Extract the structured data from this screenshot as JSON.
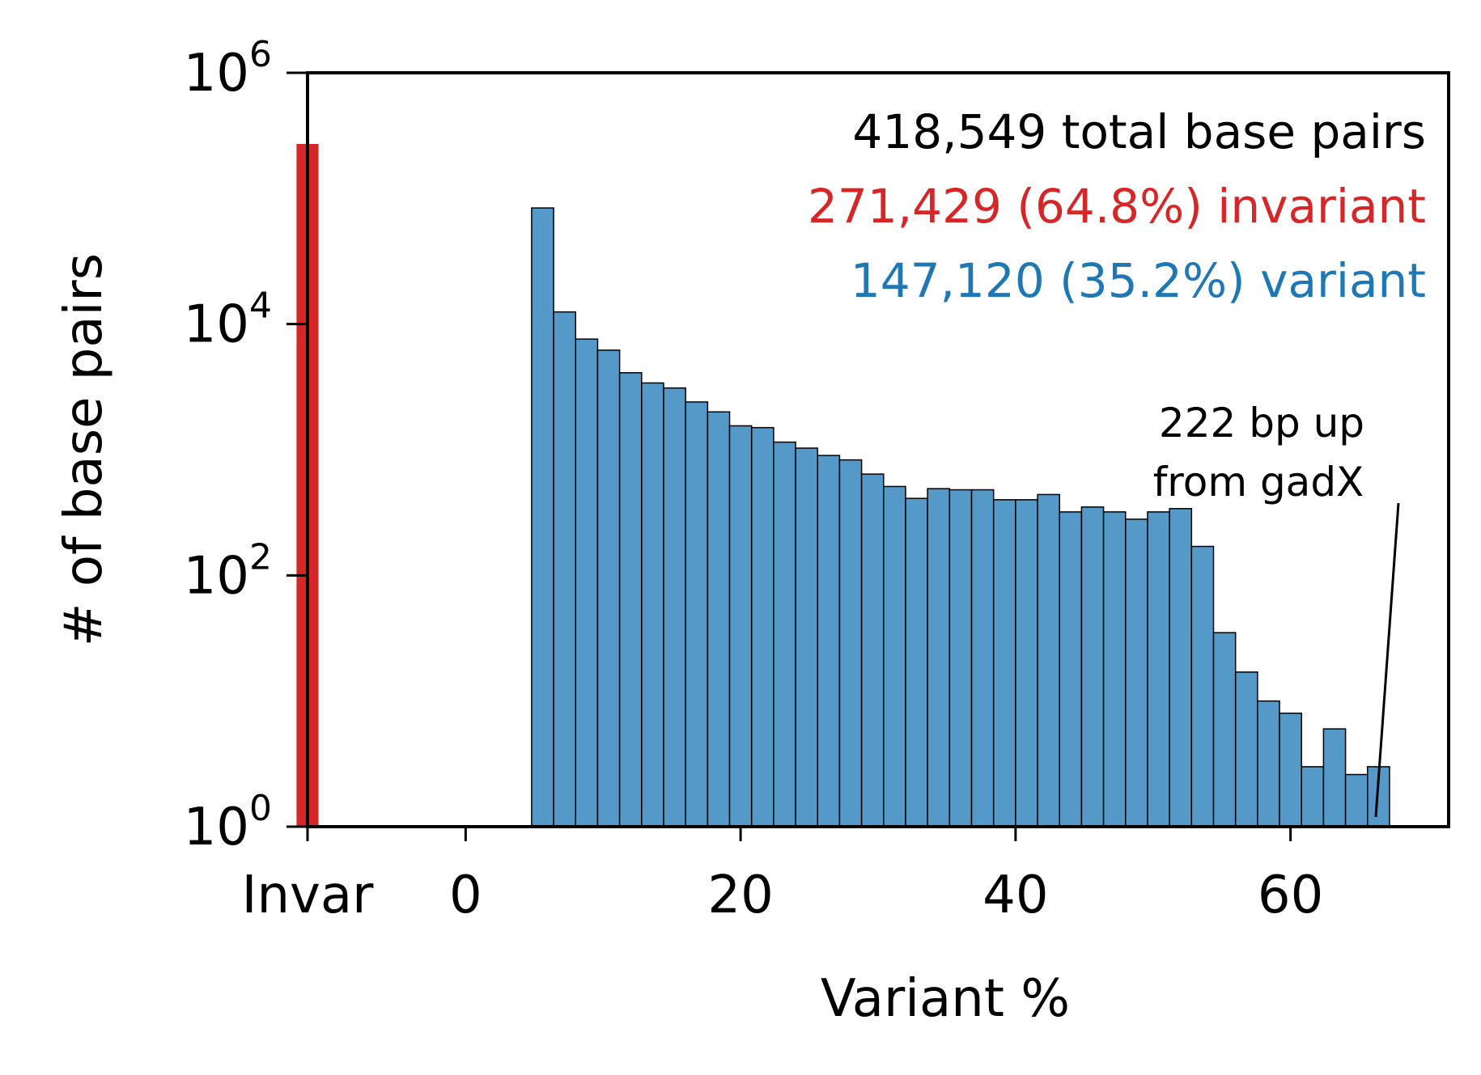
{
  "chart_data": {
    "type": "bar",
    "xlabel": "Variant %",
    "ylabel": "# of base pairs",
    "yscale": "log",
    "ylim_exponents": [
      0,
      6
    ],
    "xlim": [
      -11.5,
      71.5
    ],
    "colors": {
      "invariant": "#d62728",
      "variant": "#5499c7",
      "variant_text": "#1f77b4",
      "edge": "#000000"
    },
    "invariant_bar": {
      "label": "Invar",
      "value": 271429
    },
    "x_tick_labels": [
      "Invar",
      "0",
      "20",
      "40",
      "60"
    ],
    "x_tick_values": [
      -11.5,
      0,
      20,
      40,
      60
    ],
    "y_tick_labels": [
      {
        "base": "10",
        "exp": "0"
      },
      {
        "base": "10",
        "exp": "2"
      },
      {
        "base": "10",
        "exp": "4"
      },
      {
        "base": "10",
        "exp": "6"
      }
    ],
    "bin_width": 1.6,
    "bin_start": 0,
    "variant_bins": [
      1,
      1,
      1,
      84000,
      12500,
      7600,
      6200,
      4100,
      3400,
      3100,
      2400,
      2000,
      1550,
      1500,
      1150,
      1030,
      900,
      830,
      640,
      510,
      410,
      490,
      480,
      480,
      400,
      400,
      440,
      320,
      350,
      320,
      280,
      320,
      340,
      170,
      35,
      17,
      10,
      8,
      3,
      6,
      2.6,
      3
    ],
    "stats": {
      "total": "418,549 total base pairs",
      "invariant": "271,429 (64.8%) invariant",
      "variant": "147,120 (35.2%) variant"
    },
    "annotation": {
      "lines": [
        "222 bp up",
        "from gadX"
      ],
      "x": 66.2,
      "y": 1
    }
  }
}
